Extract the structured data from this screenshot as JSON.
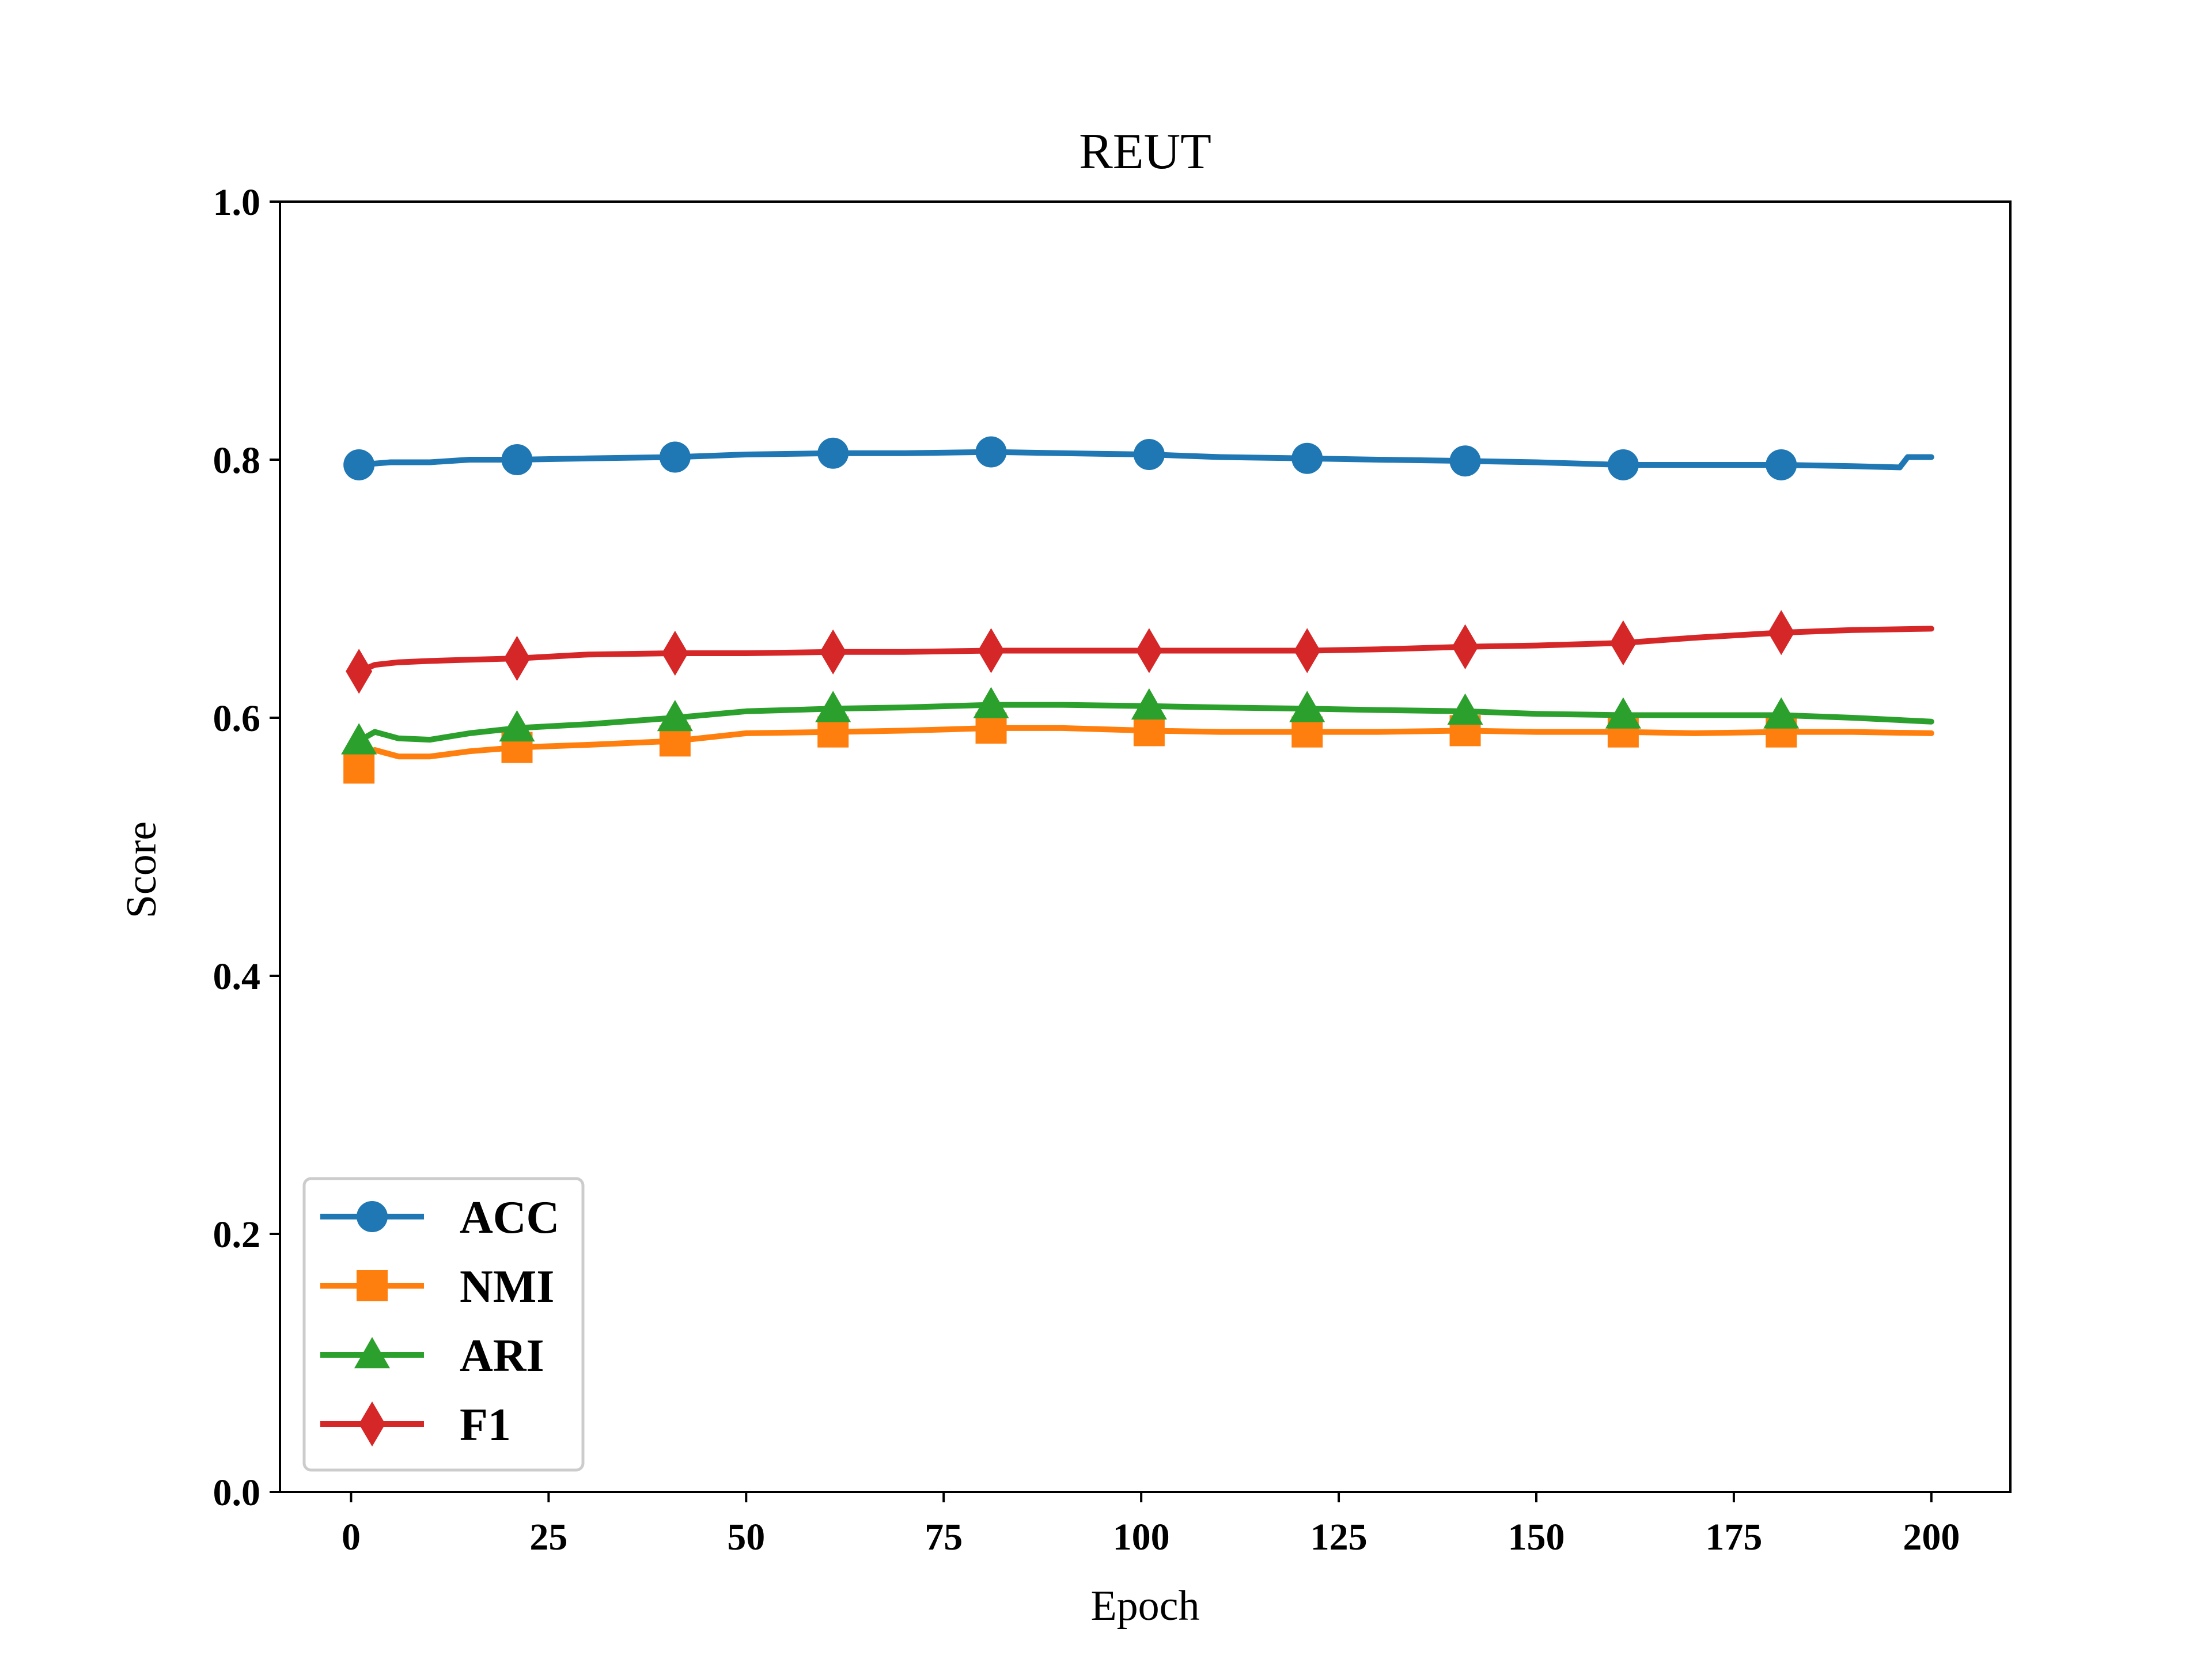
{
  "chart_data": {
    "type": "line",
    "title": "REUT",
    "xlabel": "Epoch",
    "ylabel": "Score",
    "xlim": [
      -9,
      210
    ],
    "ylim": [
      0.0,
      1.0
    ],
    "xticks": [
      0,
      25,
      50,
      75,
      100,
      125,
      150,
      175,
      200
    ],
    "yticks": [
      0.0,
      0.2,
      0.4,
      0.6,
      0.8,
      1.0
    ],
    "xtick_labels": [
      "0",
      "25",
      "50",
      "75",
      "100",
      "125",
      "150",
      "175",
      "200"
    ],
    "ytick_labels": [
      "0.0",
      "0.2",
      "0.4",
      "0.6",
      "0.8",
      "1.0"
    ],
    "grid": false,
    "legend_position": "lower-left",
    "marker_epochs": [
      1,
      21,
      41,
      61,
      81,
      101,
      121,
      141,
      161,
      181
    ],
    "series": [
      {
        "name": "ACC",
        "color": "#1f77b4",
        "marker": "circle",
        "x": [
          1,
          5,
          10,
          15,
          21,
          30,
          41,
          50,
          61,
          70,
          81,
          90,
          101,
          110,
          121,
          130,
          141,
          150,
          161,
          170,
          181,
          190,
          196,
          197,
          200
        ],
        "y": [
          0.796,
          0.798,
          0.798,
          0.8,
          0.8,
          0.801,
          0.802,
          0.804,
          0.805,
          0.805,
          0.806,
          0.805,
          0.804,
          0.802,
          0.801,
          0.8,
          0.799,
          0.798,
          0.796,
          0.796,
          0.796,
          0.795,
          0.794,
          0.802,
          0.802
        ]
      },
      {
        "name": "NMI",
        "color": "#ff7f0e",
        "marker": "square",
        "x": [
          1,
          3,
          6,
          10,
          15,
          21,
          30,
          41,
          50,
          61,
          70,
          81,
          90,
          101,
          110,
          121,
          130,
          141,
          150,
          161,
          170,
          181,
          190,
          200
        ],
        "y": [
          0.561,
          0.575,
          0.57,
          0.57,
          0.574,
          0.577,
          0.579,
          0.582,
          0.588,
          0.589,
          0.59,
          0.592,
          0.592,
          0.59,
          0.589,
          0.589,
          0.589,
          0.59,
          0.589,
          0.589,
          0.588,
          0.589,
          0.589,
          0.588
        ]
      },
      {
        "name": "ARI",
        "color": "#2ca02c",
        "marker": "triangle",
        "x": [
          1,
          3,
          6,
          10,
          15,
          21,
          30,
          41,
          50,
          61,
          70,
          81,
          90,
          101,
          110,
          121,
          130,
          141,
          150,
          161,
          170,
          181,
          190,
          200
        ],
        "y": [
          0.582,
          0.589,
          0.584,
          0.583,
          0.588,
          0.592,
          0.595,
          0.6,
          0.605,
          0.607,
          0.608,
          0.61,
          0.61,
          0.609,
          0.608,
          0.607,
          0.606,
          0.605,
          0.603,
          0.602,
          0.602,
          0.602,
          0.6,
          0.597
        ]
      },
      {
        "name": "F1",
        "color": "#d62728",
        "marker": "diamond",
        "x": [
          1,
          3,
          6,
          10,
          15,
          21,
          30,
          41,
          50,
          61,
          70,
          81,
          90,
          101,
          110,
          121,
          130,
          141,
          150,
          161,
          170,
          181,
          190,
          200
        ],
        "y": [
          0.636,
          0.641,
          0.643,
          0.644,
          0.645,
          0.646,
          0.649,
          0.65,
          0.65,
          0.651,
          0.651,
          0.652,
          0.652,
          0.652,
          0.652,
          0.652,
          0.653,
          0.655,
          0.656,
          0.658,
          0.662,
          0.666,
          0.668,
          0.669
        ]
      }
    ]
  }
}
